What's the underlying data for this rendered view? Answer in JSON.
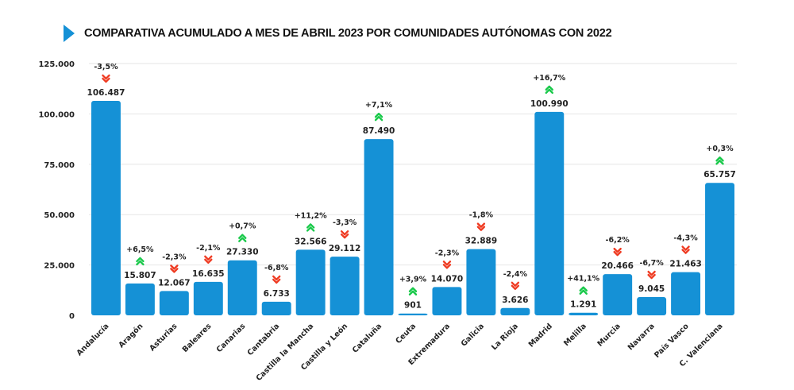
{
  "header": {
    "title": "COMPARATIVA ACUMULADO A MES DE ABRIL 2023 POR COMUNIDADES AUTÓNOMAS CON 2022",
    "marker_icon": "play-triangle-icon"
  },
  "colors": {
    "bar": "#1591d6",
    "up": "#19c94a",
    "down": "#ef3b22",
    "grid": "#e6e6e6",
    "title_marker": "#1591d6"
  },
  "chart_data": {
    "type": "bar",
    "title": "COMPARATIVA ACUMULADO A MES DE ABRIL 2023 POR COMUNIDADES AUTÓNOMAS CON 2022",
    "xlabel": "",
    "ylabel": "",
    "ylim": [
      0,
      125000
    ],
    "yticks": [
      0,
      25000,
      50000,
      75000,
      100000,
      125000
    ],
    "ytick_labels": [
      "0",
      "25.000",
      "50.000",
      "75.000",
      "100.000",
      "125.000"
    ],
    "grid": true,
    "legend": "none",
    "categories": [
      "Andalucía",
      "Aragón",
      "Asturias",
      "Baleares",
      "Canarias",
      "Cantabria",
      "Castilla la Mancha",
      "Castilla y León",
      "Cataluña",
      "Ceuta",
      "Extremadura",
      "Galicia",
      "La Rioja",
      "Madrid",
      "Melilla",
      "Murcia",
      "Navarra",
      "País Vasco",
      "C. Valenciana"
    ],
    "values": [
      106487,
      15807,
      12067,
      16635,
      27330,
      6733,
      32566,
      29112,
      87490,
      901,
      14070,
      32889,
      3626,
      100990,
      1291,
      20466,
      9045,
      21463,
      65757
    ],
    "value_labels": [
      "106.487",
      "15.807",
      "12.067",
      "16.635",
      "27.330",
      "6.733",
      "32.566",
      "29.112",
      "87.490",
      "901",
      "14.070",
      "32.889",
      "3.626",
      "100.990",
      "1.291",
      "20.466",
      "9.045",
      "21.463",
      "65.757"
    ],
    "change_vs_2022_pct": [
      -3.5,
      6.5,
      -2.3,
      -2.1,
      0.7,
      -6.8,
      11.2,
      -3.3,
      7.1,
      3.9,
      -2.3,
      -1.8,
      -2.4,
      16.7,
      41.1,
      -6.2,
      -6.7,
      -4.3,
      0.3
    ],
    "change_labels": [
      "-3,5%",
      "+6,5%",
      "-2,3%",
      "-2,1%",
      "+0,7%",
      "-6,8%",
      "+11,2%",
      "-3,3%",
      "+7,1%",
      "+3,9%",
      "-2,3%",
      "-1,8%",
      "-2,4%",
      "+16,7%",
      "+41,1%",
      "-6,2%",
      "-6,7%",
      "-4,3%",
      "+0,3%"
    ],
    "change_icons": [
      "chevron-double-down",
      "chevron-double-up",
      "chevron-double-down",
      "chevron-double-down",
      "chevron-double-up",
      "chevron-double-down",
      "chevron-double-up",
      "chevron-double-down",
      "chevron-double-up",
      "chevron-double-up",
      "chevron-double-down",
      "chevron-double-down",
      "chevron-double-down",
      "chevron-double-up",
      "chevron-double-up",
      "chevron-double-down",
      "chevron-double-down",
      "chevron-double-down",
      "chevron-double-up"
    ]
  }
}
